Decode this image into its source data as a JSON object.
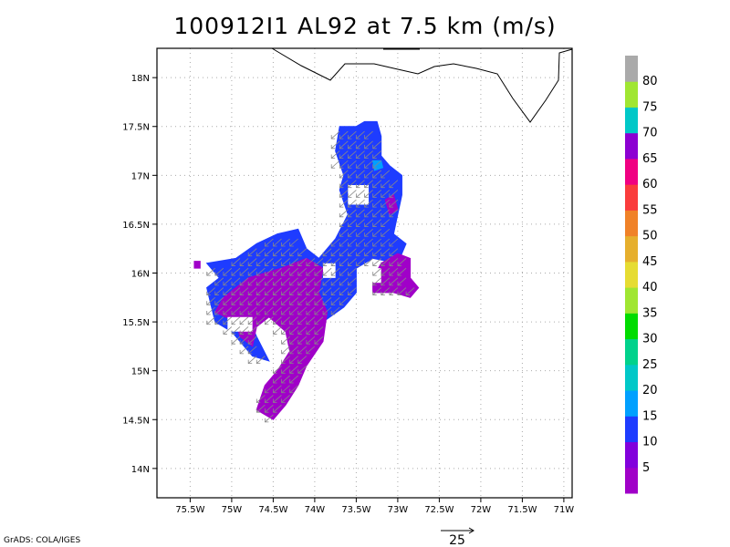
{
  "title": "100912I1 AL92 at 7.5 km (m/s)",
  "credit": "GrADS: COLA/IGES",
  "map": {
    "lon_range": [
      -75.9,
      -70.9
    ],
    "lat_range": [
      13.7,
      18.3
    ],
    "x_ticks": [
      "75.5W",
      "75W",
      "74.5W",
      "74W",
      "73.5W",
      "73W",
      "72.5W",
      "72W",
      "71.5W",
      "71W"
    ],
    "x_tick_values": [
      -75.5,
      -75.0,
      -74.5,
      -74.0,
      -73.5,
      -73.0,
      -72.5,
      -72.0,
      -71.5,
      -71.0
    ],
    "y_ticks": [
      "14N",
      "14.5N",
      "15N",
      "15.5N",
      "16N",
      "16.5N",
      "17N",
      "17.5N",
      "18N"
    ],
    "y_tick_values": [
      14.0,
      14.5,
      15.0,
      15.5,
      16.0,
      16.5,
      17.0,
      17.5,
      18.0
    ],
    "grid": "dotted"
  },
  "colorbar": {
    "labels": [
      "5",
      "10",
      "15",
      "20",
      "25",
      "30",
      "35",
      "40",
      "45",
      "50",
      "55",
      "60",
      "65",
      "70",
      "75",
      "80"
    ],
    "colors": [
      "#a000c8",
      "#8200dc",
      "#1e3cff",
      "#00a0ff",
      "#00c8c8",
      "#00d28c",
      "#00dc00",
      "#a0e632",
      "#e6dc32",
      "#e6af2d",
      "#f08228",
      "#fa3c3c",
      "#f00082",
      "#8c00d2",
      "#00c8c8",
      "#a0e632",
      "#aaaaaa"
    ]
  },
  "reference_vector": {
    "label": "25",
    "speed": 25
  },
  "colors": {
    "blue": "#1e3cff",
    "purple": "#a000c8",
    "cyan": "#00a0ff",
    "vector": "#888888",
    "coast": "#000000"
  }
}
